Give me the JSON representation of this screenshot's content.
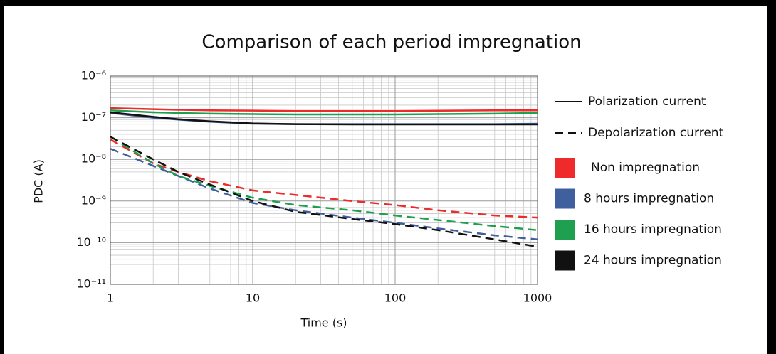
{
  "chart_data": {
    "type": "line",
    "title": "Comparison of each period impregnation",
    "x_label": "Time (s)",
    "y_label": "PDC (A)",
    "log_x": true,
    "log_y": true,
    "grid": true,
    "legend_position": "right",
    "xlim": [
      1,
      1000
    ],
    "xticks": [
      1,
      10,
      100,
      1000
    ],
    "ylim": [
      1e-11,
      1e-06
    ],
    "yticks": [
      {
        "value": 1e-06,
        "label": "10⁻⁶"
      },
      {
        "value": 1e-07,
        "label": "10⁻⁷"
      },
      {
        "value": 1e-08,
        "label": "10⁻⁸"
      },
      {
        "value": 1e-09,
        "label": "10⁻⁹"
      },
      {
        "value": 1e-10,
        "label": "10⁻¹⁰"
      },
      {
        "value": 1e-11,
        "label": "10⁻¹¹"
      }
    ],
    "line_styles": [
      {
        "name": "Polarization current",
        "dash": "solid"
      },
      {
        "name": "Depolarization current",
        "dash": "dashed"
      }
    ],
    "x": [
      1,
      2,
      3,
      5,
      10,
      20,
      50,
      100,
      200,
      500,
      1000
    ],
    "conditions": [
      {
        "name": "Non impregnation",
        "color": "#ee2a2a",
        "polarization": [
          1.7e-07,
          1.6e-07,
          1.55e-07,
          1.5e-07,
          1.48e-07,
          1.45e-07,
          1.45e-07,
          1.45e-07,
          1.47e-07,
          1.5e-07,
          1.5e-07
        ],
        "depolarization": [
          3e-08,
          8e-09,
          5e-09,
          3e-09,
          1.8e-09,
          1.4e-09,
          1e-09,
          8e-10,
          6e-10,
          4.5e-10,
          4e-10
        ]
      },
      {
        "name": "8 hours impregnation",
        "color": "#3f5f9f",
        "polarization": [
          1.3e-07,
          1e-07,
          9e-08,
          8e-08,
          7.2e-08,
          7e-08,
          7e-08,
          7e-08,
          7e-08,
          7e-08,
          7.2e-08
        ],
        "depolarization": [
          1.8e-08,
          7e-09,
          4e-09,
          2e-09,
          9e-10,
          6e-10,
          4e-10,
          3e-10,
          2.2e-10,
          1.5e-10,
          1.2e-10
        ]
      },
      {
        "name": "16 hours impregnation",
        "color": "#1fa050",
        "polarization": [
          1.5e-07,
          1.35e-07,
          1.3e-07,
          1.25e-07,
          1.22e-07,
          1.2e-07,
          1.2e-07,
          1.2e-07,
          1.22e-07,
          1.25e-07,
          1.3e-07
        ],
        "depolarization": [
          3.5e-08,
          8e-09,
          4e-09,
          2.3e-09,
          1.2e-09,
          8e-10,
          6e-10,
          4.5e-10,
          3.5e-10,
          2.5e-10,
          2e-10
        ]
      },
      {
        "name": "24 hours impregnation",
        "color": "#111111",
        "polarization": [
          1.35e-07,
          1.05e-07,
          9.2e-08,
          8.2e-08,
          7.3e-08,
          7e-08,
          6.9e-08,
          6.9e-08,
          6.9e-08,
          6.9e-08,
          6.9e-08
        ],
        "depolarization": [
          3.5e-08,
          1e-08,
          5e-09,
          2.5e-09,
          1e-09,
          5.5e-10,
          3.7e-10,
          2.8e-10,
          2e-10,
          1.2e-10,
          8e-11
        ]
      }
    ]
  }
}
